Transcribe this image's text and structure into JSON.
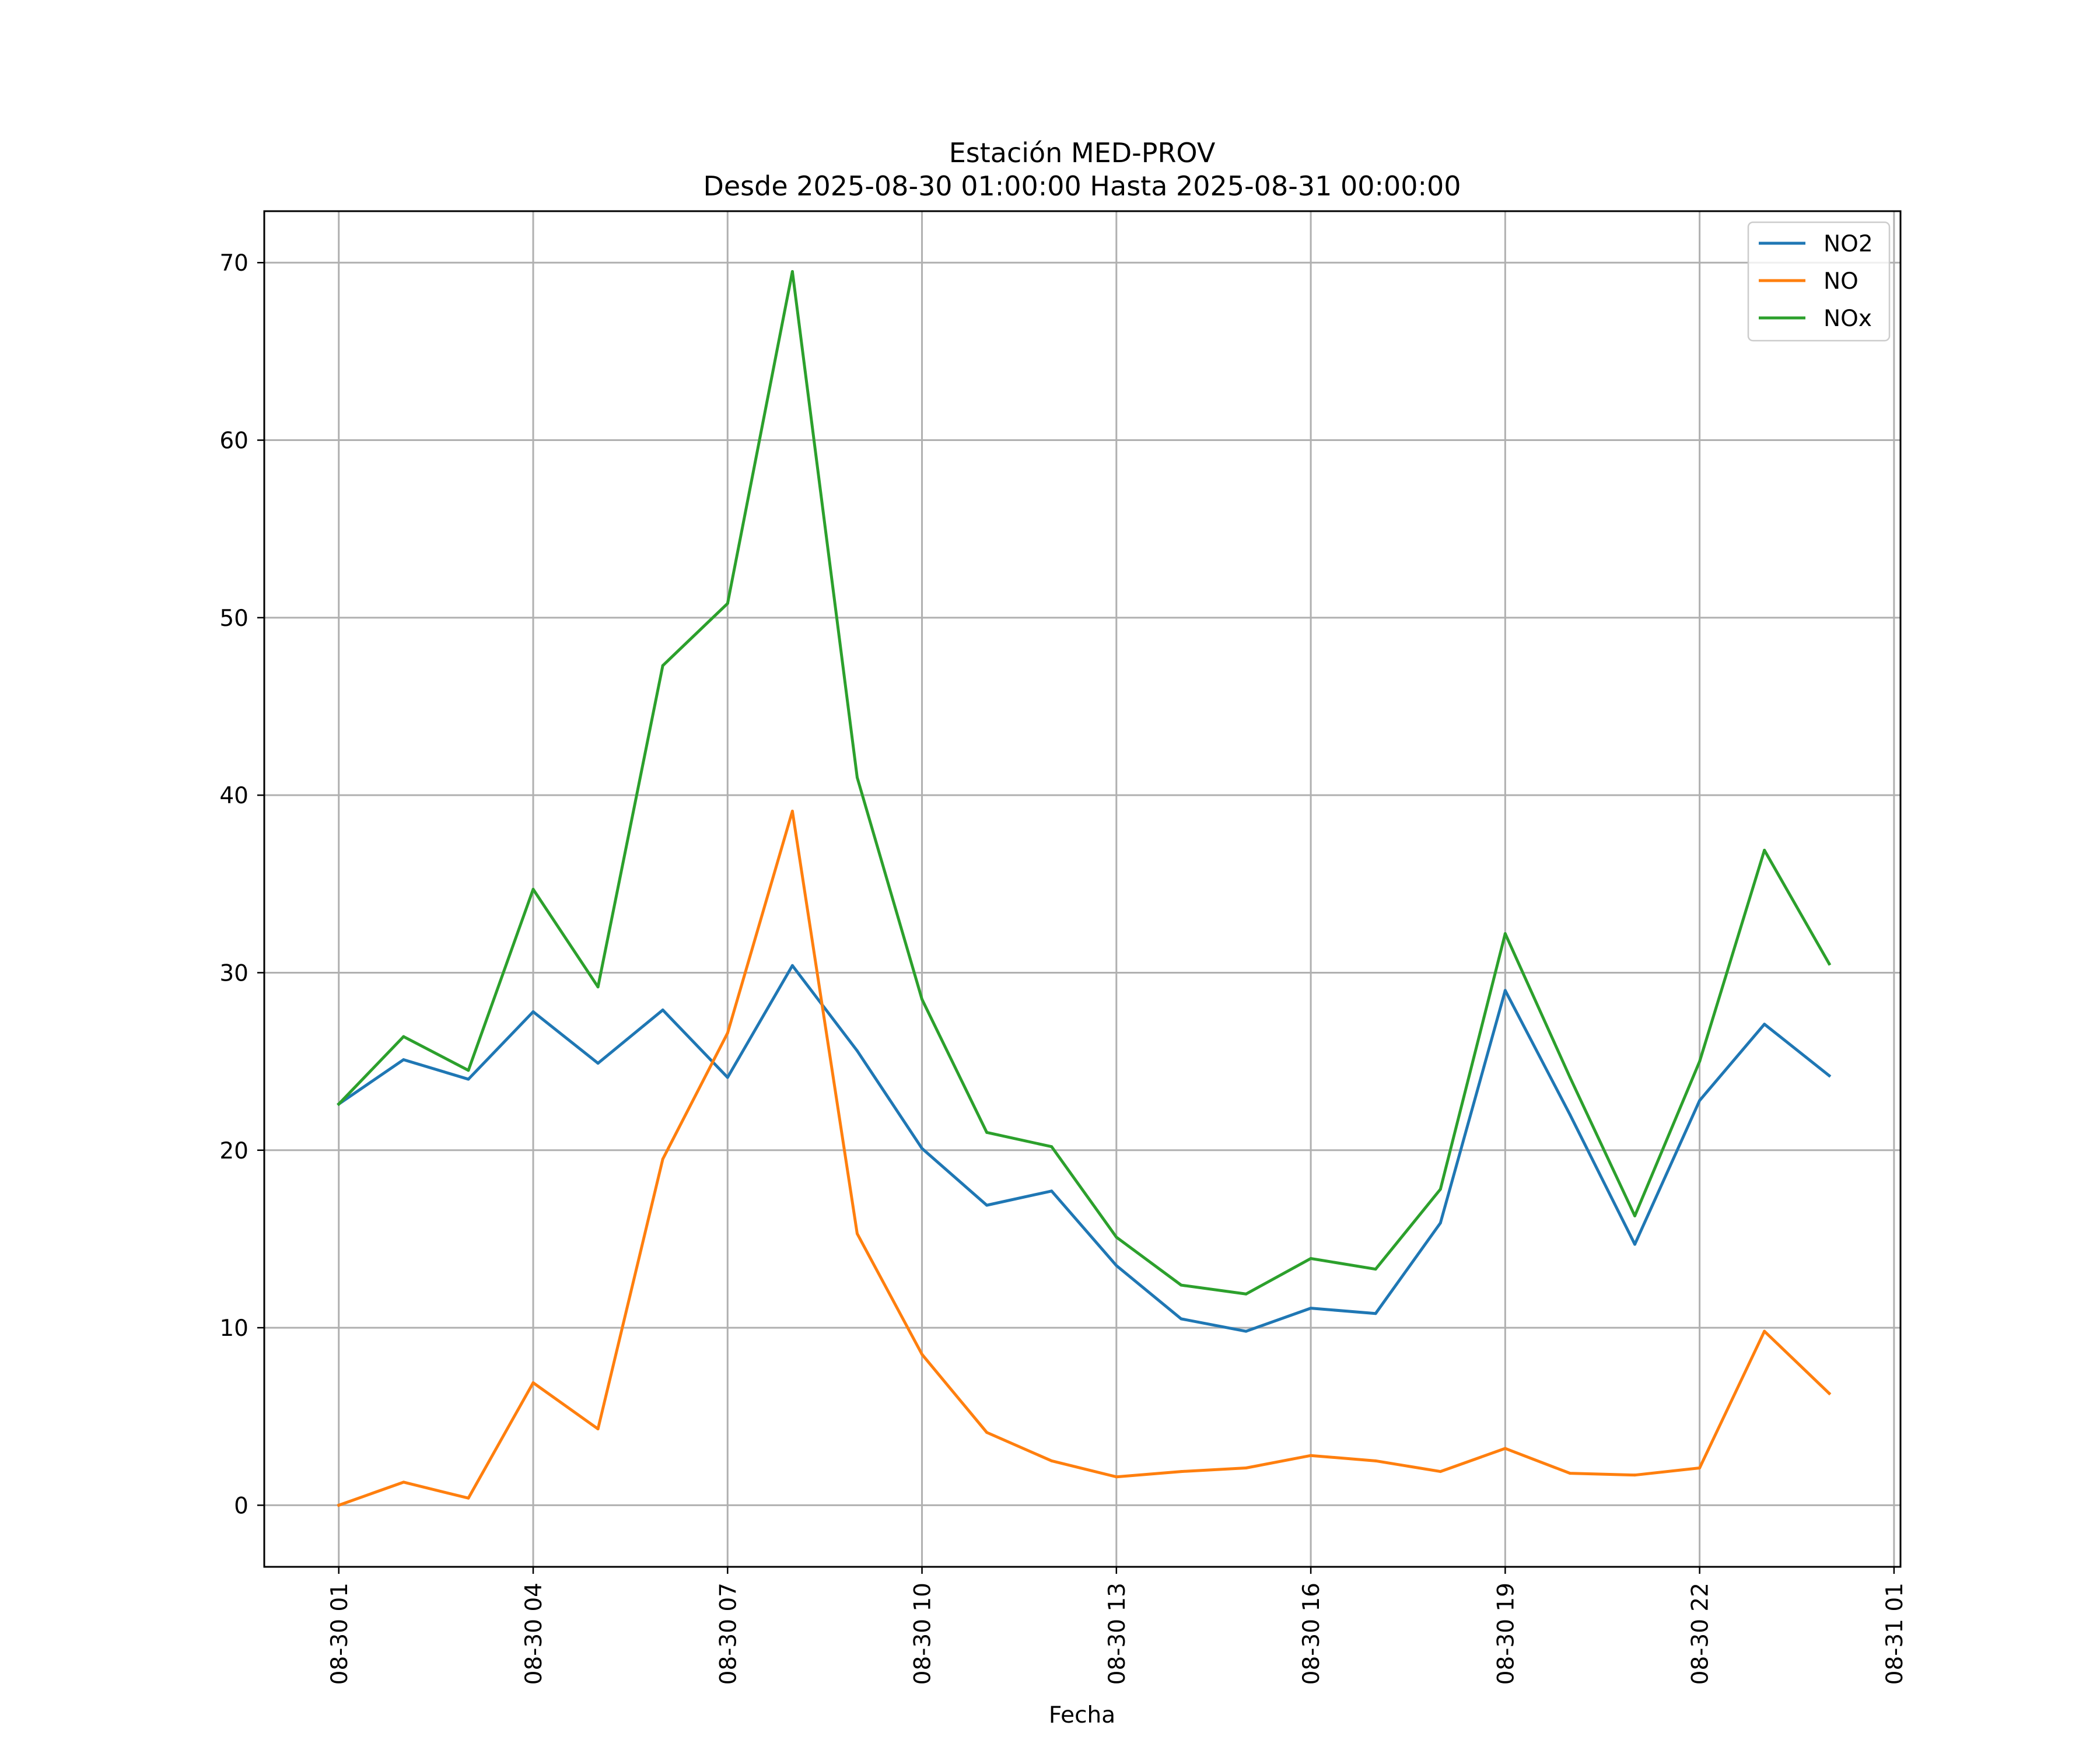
{
  "chart_data": {
    "type": "line",
    "title": "Estación MED-PROV",
    "subtitle": "Desde 2025-08-30 01:00:00 Hasta 2025-08-31 00:00:00",
    "xlabel": "Fecha",
    "ylabel": "",
    "x": [
      1,
      2,
      3,
      4,
      5,
      6,
      7,
      8,
      9,
      10,
      11,
      12,
      13,
      14,
      15,
      16,
      17,
      18,
      19,
      20,
      21,
      22,
      23,
      24
    ],
    "x_ticks": [
      {
        "value": 1,
        "label": "08-30 01"
      },
      {
        "value": 4,
        "label": "08-30 04"
      },
      {
        "value": 7,
        "label": "08-30 07"
      },
      {
        "value": 10,
        "label": "08-30 10"
      },
      {
        "value": 13,
        "label": "08-30 13"
      },
      {
        "value": 16,
        "label": "08-30 16"
      },
      {
        "value": 19,
        "label": "08-30 19"
      },
      {
        "value": 22,
        "label": "08-30 22"
      },
      {
        "value": 25,
        "label": "08-31 01"
      }
    ],
    "y_ticks": [
      0,
      10,
      20,
      30,
      40,
      50,
      60,
      70
    ],
    "xlim": [
      -0.15,
      25.1
    ],
    "ylim": [
      -3.47,
      72.9
    ],
    "grid": true,
    "legend_position": "top-right",
    "series": [
      {
        "name": "NO2",
        "color": "#1f77b4",
        "values": [
          22.6,
          25.1,
          24.0,
          27.8,
          24.9,
          27.9,
          24.1,
          30.4,
          25.6,
          20.1,
          16.9,
          17.7,
          13.5,
          10.5,
          9.8,
          11.1,
          10.8,
          15.9,
          29.0,
          22.0,
          14.7,
          22.8,
          27.1,
          24.2
        ]
      },
      {
        "name": "NO",
        "color": "#ff7f0e",
        "values": [
          0.0,
          1.3,
          0.4,
          6.9,
          4.3,
          19.5,
          26.6,
          39.1,
          15.3,
          8.5,
          4.1,
          2.5,
          1.6,
          1.9,
          2.1,
          2.8,
          2.5,
          1.9,
          3.2,
          1.8,
          1.7,
          2.1,
          9.8,
          6.3
        ]
      },
      {
        "name": "NOx",
        "color": "#2ca02c",
        "values": [
          22.6,
          26.4,
          24.5,
          34.7,
          29.2,
          47.3,
          50.8,
          69.5,
          41.0,
          28.5,
          21.0,
          20.2,
          15.1,
          12.4,
          11.9,
          13.9,
          13.3,
          17.8,
          32.2,
          24.1,
          16.3,
          25.0,
          36.9,
          30.5
        ]
      }
    ]
  }
}
